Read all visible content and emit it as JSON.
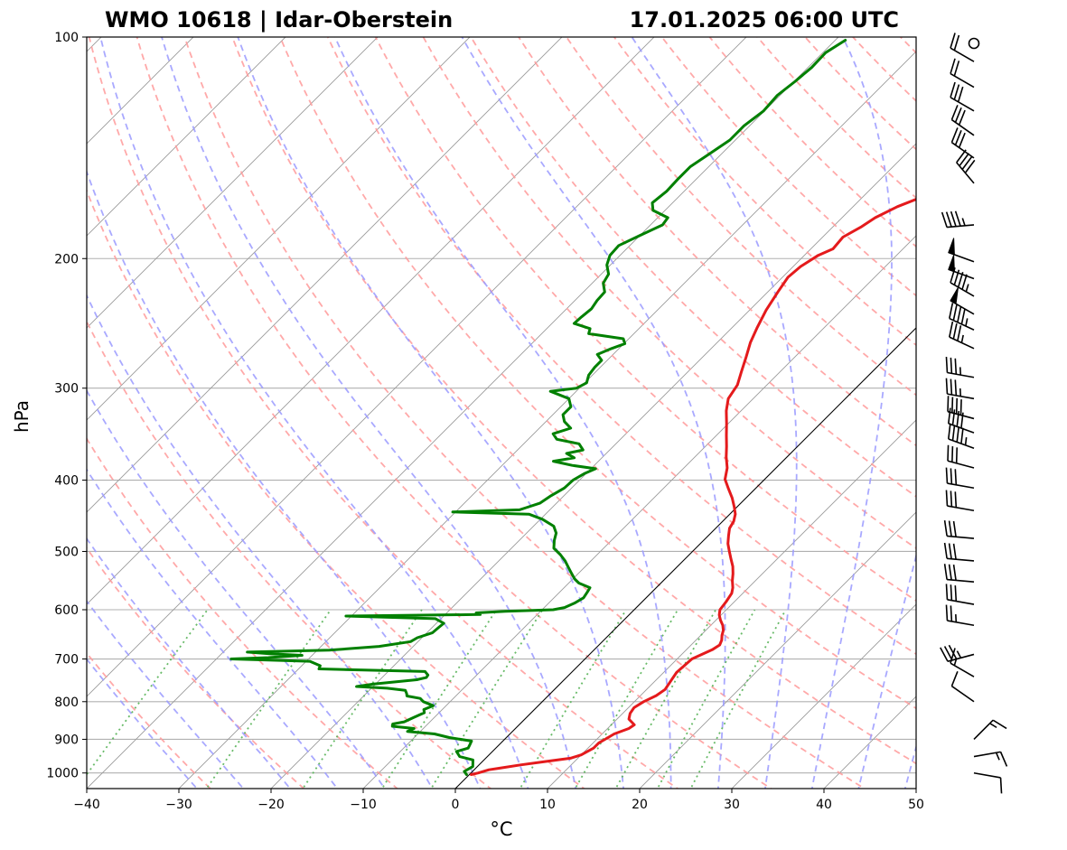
{
  "header": {
    "left_title": "WMO 10618 | Idar-Oberstein",
    "right_title": "17.01.2025 06:00 UTC"
  },
  "chart_data": {
    "type": "line",
    "xlabel": "°C",
    "ylabel": "hPa",
    "xlim": [
      -40,
      50
    ],
    "ylim": [
      1050,
      100
    ],
    "y_scale": "log",
    "skew": true,
    "grid": true,
    "x_ticks": [
      "−40",
      "−30",
      "−20",
      "−10",
      "0",
      "10",
      "20",
      "30",
      "40",
      "50"
    ],
    "y_ticks": [
      "100",
      "200",
      "300",
      "400",
      "500",
      "600",
      "700",
      "800",
      "900",
      "1000"
    ],
    "colors": {
      "temperature": "#e41a1c",
      "dewpoint": "#008000",
      "dry_adiabat": "#ff9a9a",
      "moist_adiabat": "#9a9aff",
      "mixing_ratio": "#56b356",
      "isotherm": "#9a9a9a",
      "zero_isotherm": "#000000"
    },
    "series": [
      {
        "key": "temperature",
        "points": [
          [
            1005,
            0.2
          ],
          [
            1000,
            0.8
          ],
          [
            990,
            1.6
          ],
          [
            985,
            2.6
          ],
          [
            975,
            4.5
          ],
          [
            965,
            6.8
          ],
          [
            955,
            9.2
          ],
          [
            945,
            10.0
          ],
          [
            925,
            10.6
          ],
          [
            910,
            10.6
          ],
          [
            900,
            10.9
          ],
          [
            885,
            11.3
          ],
          [
            870,
            12.3
          ],
          [
            860,
            12.5
          ],
          [
            845,
            11.3
          ],
          [
            830,
            10.8
          ],
          [
            815,
            10.6
          ],
          [
            800,
            11.0
          ],
          [
            785,
            11.7
          ],
          [
            770,
            12.0
          ],
          [
            750,
            11.7
          ],
          [
            730,
            11.4
          ],
          [
            715,
            11.5
          ],
          [
            700,
            11.6
          ],
          [
            690,
            12.2
          ],
          [
            680,
            12.8
          ],
          [
            670,
            13.1
          ],
          [
            660,
            12.8
          ],
          [
            650,
            12.3
          ],
          [
            640,
            11.9
          ],
          [
            630,
            11.3
          ],
          [
            620,
            10.5
          ],
          [
            610,
            9.8
          ],
          [
            600,
            9.3
          ],
          [
            585,
            9.1
          ],
          [
            570,
            8.8
          ],
          [
            560,
            8.3
          ],
          [
            548,
            7.5
          ],
          [
            536,
            6.8
          ],
          [
            524,
            6.0
          ],
          [
            512,
            5.0
          ],
          [
            500,
            4.0
          ],
          [
            488,
            3.0
          ],
          [
            476,
            2.2
          ],
          [
            465,
            1.5
          ],
          [
            455,
            1.2
          ],
          [
            445,
            0.6
          ],
          [
            435,
            -0.3
          ],
          [
            423,
            -1.5
          ],
          [
            411,
            -2.9
          ],
          [
            399,
            -4.3
          ],
          [
            385,
            -5.3
          ],
          [
            372,
            -6.6
          ],
          [
            360,
            -7.7
          ],
          [
            348,
            -8.9
          ],
          [
            335,
            -10.2
          ],
          [
            322,
            -11.6
          ],
          [
            310,
            -12.7
          ],
          [
            297,
            -13.2
          ],
          [
            285,
            -14.2
          ],
          [
            272,
            -15.3
          ],
          [
            260,
            -16.4
          ],
          [
            248,
            -17.3
          ],
          [
            235,
            -18.2
          ],
          [
            222,
            -18.9
          ],
          [
            212,
            -19.4
          ],
          [
            205,
            -19.2
          ],
          [
            198,
            -18.5
          ],
          [
            194,
            -17.6
          ],
          [
            187,
            -17.8
          ],
          [
            181,
            -16.9
          ],
          [
            176,
            -16.4
          ],
          [
            170,
            -15.2
          ],
          [
            165,
            -13.6
          ],
          [
            158,
            -13.3
          ],
          [
            150,
            -13.5
          ],
          [
            145,
            -12.6
          ],
          [
            140,
            -11.4
          ],
          [
            137,
            -10.2
          ],
          [
            134,
            -9.3
          ],
          [
            131,
            -8.5
          ],
          [
            127,
            -8.4
          ],
          [
            124,
            -7.2
          ],
          [
            120,
            -6.6
          ],
          [
            117,
            -6.0
          ],
          [
            114,
            -6.2
          ],
          [
            111,
            -5.6
          ],
          [
            108,
            -5.2
          ],
          [
            105,
            -4.9
          ],
          [
            101,
            -4.2
          ]
        ]
      },
      {
        "key": "dewpoint",
        "points": [
          [
            1005,
            -0.3
          ],
          [
            995,
            -0.9
          ],
          [
            980,
            -0.5
          ],
          [
            960,
            -1.2
          ],
          [
            950,
            -3.0
          ],
          [
            935,
            -3.9
          ],
          [
            925,
            -3.0
          ],
          [
            915,
            -3.2
          ],
          [
            905,
            -3.4
          ],
          [
            895,
            -6.2
          ],
          [
            885,
            -8.2
          ],
          [
            878,
            -11.4
          ],
          [
            870,
            -11.0
          ],
          [
            864,
            -13.6
          ],
          [
            858,
            -13.8
          ],
          [
            852,
            -12.8
          ],
          [
            840,
            -12.2
          ],
          [
            828,
            -11.6
          ],
          [
            820,
            -12.0
          ],
          [
            810,
            -11.4
          ],
          [
            800,
            -12.9
          ],
          [
            792,
            -13.6
          ],
          [
            786,
            -15.3
          ],
          [
            780,
            -15.6
          ],
          [
            772,
            -16.1
          ],
          [
            767,
            -18.3
          ],
          [
            763,
            -21.8
          ],
          [
            757,
            -20.2
          ],
          [
            747,
            -16.0
          ],
          [
            742,
            -15.2
          ],
          [
            736,
            -15.3
          ],
          [
            728,
            -16.0
          ],
          [
            722,
            -27.8
          ],
          [
            715,
            -28.0
          ],
          [
            705,
            -29.6
          ],
          [
            700,
            -38.4
          ],
          [
            697,
            -34.5
          ],
          [
            692,
            -31.1
          ],
          [
            689,
            -34.6
          ],
          [
            685,
            -37.4
          ],
          [
            681,
            -28.7
          ],
          [
            673,
            -23.7
          ],
          [
            663,
            -20.8
          ],
          [
            655,
            -20.5
          ],
          [
            645,
            -19.4
          ],
          [
            635,
            -19.3
          ],
          [
            626,
            -19.2
          ],
          [
            617,
            -20.6
          ],
          [
            612,
            -30.6
          ],
          [
            609,
            -16.2
          ],
          [
            606,
            -16.8
          ],
          [
            603,
            -13.8
          ],
          [
            600,
            -8.8
          ],
          [
            596,
            -7.8
          ],
          [
            588,
            -7.2
          ],
          [
            578,
            -6.8
          ],
          [
            568,
            -7.0
          ],
          [
            560,
            -7.2
          ],
          [
            552,
            -8.9
          ],
          [
            545,
            -9.8
          ],
          [
            535,
            -10.8
          ],
          [
            525,
            -11.8
          ],
          [
            515,
            -12.8
          ],
          [
            505,
            -14.0
          ],
          [
            495,
            -15.4
          ],
          [
            483,
            -16.2
          ],
          [
            472,
            -16.8
          ],
          [
            462,
            -17.8
          ],
          [
            452,
            -19.8
          ],
          [
            445,
            -21.8
          ],
          [
            442,
            -30.3
          ],
          [
            439,
            -23.3
          ],
          [
            436,
            -22.8
          ],
          [
            430,
            -21.8
          ],
          [
            420,
            -21.4
          ],
          [
            410,
            -20.8
          ],
          [
            400,
            -20.7
          ],
          [
            392,
            -20.2
          ],
          [
            386,
            -19.5
          ],
          [
            382,
            -22.4
          ],
          [
            377,
            -24.9
          ],
          [
            373,
            -23.0
          ],
          [
            368,
            -24.3
          ],
          [
            364,
            -22.9
          ],
          [
            357,
            -24.0
          ],
          [
            352,
            -26.9
          ],
          [
            346,
            -27.9
          ],
          [
            340,
            -26.6
          ],
          [
            333,
            -28.0
          ],
          [
            326,
            -28.9
          ],
          [
            318,
            -28.9
          ],
          [
            310,
            -30.0
          ],
          [
            303,
            -32.8
          ],
          [
            300,
            -30.3
          ],
          [
            295,
            -29.8
          ],
          [
            288,
            -30.4
          ],
          [
            281,
            -30.6
          ],
          [
            275,
            -30.6
          ],
          [
            270,
            -31.7
          ],
          [
            265,
            -30.8
          ],
          [
            261,
            -29.9
          ],
          [
            257,
            -30.6
          ],
          [
            253,
            -34.9
          ],
          [
            249,
            -35.3
          ],
          [
            245,
            -37.6
          ],
          [
            240,
            -37.5
          ],
          [
            234,
            -37.3
          ],
          [
            228,
            -37.6
          ],
          [
            222,
            -37.7
          ],
          [
            216,
            -38.8
          ],
          [
            210,
            -39.2
          ],
          [
            204,
            -40.4
          ],
          [
            198,
            -41.1
          ],
          [
            192,
            -41.2
          ],
          [
            186,
            -40.0
          ],
          [
            180,
            -38.7
          ],
          [
            176,
            -38.9
          ],
          [
            172,
            -41.3
          ],
          [
            168,
            -42.2
          ],
          [
            162,
            -41.9
          ],
          [
            156,
            -42.0
          ],
          [
            150,
            -42.0
          ],
          [
            144,
            -41.3
          ],
          [
            138,
            -40.6
          ],
          [
            132,
            -40.6
          ],
          [
            126,
            -40.1
          ],
          [
            120,
            -40.3
          ],
          [
            115,
            -39.9
          ],
          [
            110,
            -39.6
          ],
          [
            105,
            -39.7
          ],
          [
            101,
            -38.9
          ]
        ]
      }
    ],
    "wind_barbs": [
      {
        "p": 102,
        "dir": 270,
        "spd": 0
      },
      {
        "p": 108,
        "dir": 300,
        "spd": 20
      },
      {
        "p": 117,
        "dir": 300,
        "spd": 20
      },
      {
        "p": 126,
        "dir": 300,
        "spd": 30
      },
      {
        "p": 136,
        "dir": 305,
        "spd": 30
      },
      {
        "p": 146,
        "dir": 305,
        "spd": 30
      },
      {
        "p": 158,
        "dir": 320,
        "spd": 40
      },
      {
        "p": 180,
        "dir": 265,
        "spd": 45
      },
      {
        "p": 202,
        "dir": 290,
        "spd": 50
      },
      {
        "p": 213,
        "dir": 290,
        "spd": 50
      },
      {
        "p": 225,
        "dir": 300,
        "spd": 45
      },
      {
        "p": 238,
        "dir": 300,
        "spd": 50
      },
      {
        "p": 250,
        "dir": 295,
        "spd": 45
      },
      {
        "p": 265,
        "dir": 295,
        "spd": 35
      },
      {
        "p": 290,
        "dir": 280,
        "spd": 35
      },
      {
        "p": 310,
        "dir": 280,
        "spd": 35
      },
      {
        "p": 330,
        "dir": 285,
        "spd": 40
      },
      {
        "p": 345,
        "dir": 290,
        "spd": 40
      },
      {
        "p": 362,
        "dir": 290,
        "spd": 45
      },
      {
        "p": 385,
        "dir": 285,
        "spd": 30
      },
      {
        "p": 410,
        "dir": 280,
        "spd": 30
      },
      {
        "p": 440,
        "dir": 280,
        "spd": 30
      },
      {
        "p": 480,
        "dir": 275,
        "spd": 30
      },
      {
        "p": 515,
        "dir": 275,
        "spd": 30
      },
      {
        "p": 550,
        "dir": 275,
        "spd": 30
      },
      {
        "p": 590,
        "dir": 280,
        "spd": 30
      },
      {
        "p": 630,
        "dir": 280,
        "spd": 25
      },
      {
        "p": 690,
        "dir": 255,
        "spd": 35
      },
      {
        "p": 740,
        "dir": 300,
        "spd": 15
      },
      {
        "p": 800,
        "dir": 305,
        "spd": 10
      },
      {
        "p": 900,
        "dir": 45,
        "spd": 15
      },
      {
        "p": 950,
        "dir": 80,
        "spd": 15
      },
      {
        "p": 1000,
        "dir": 100,
        "spd": 10
      }
    ]
  }
}
